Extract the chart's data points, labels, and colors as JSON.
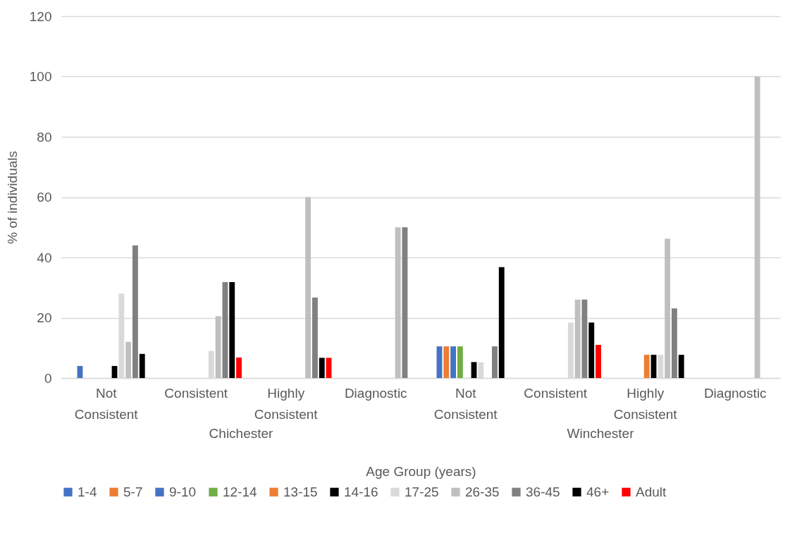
{
  "chart_data": {
    "type": "bar",
    "xlabel": "Age Group (years)",
    "ylabel": "% of individuals",
    "categories": [
      "Not Consistent",
      "Consistent",
      "Highly Consistent",
      "Diagnostic",
      "Not Consistent",
      "Consistent",
      "Highly Consistent",
      "Diagnostic"
    ],
    "annotations": [
      "Chichester",
      "Winchester"
    ],
    "series": [
      {
        "name": "1-4",
        "color": "#4472c4",
        "values": [
          4,
          null,
          null,
          null,
          10.5,
          null,
          null,
          null
        ]
      },
      {
        "name": "5-7",
        "color": "#ed7d31",
        "values": [
          null,
          null,
          null,
          null,
          10.5,
          null,
          null,
          null
        ]
      },
      {
        "name": "9-10",
        "color": "#4472c4",
        "values": [
          null,
          null,
          null,
          null,
          10.5,
          null,
          null,
          null
        ]
      },
      {
        "name": "12-14",
        "color": "#70ad47",
        "values": [
          null,
          null,
          null,
          null,
          10.5,
          null,
          null,
          null
        ]
      },
      {
        "name": "13-15",
        "color": "#ed7d31",
        "values": [
          null,
          null,
          null,
          null,
          null,
          null,
          7.7,
          null
        ]
      },
      {
        "name": "14-16",
        "color": "#000000",
        "values": [
          4,
          null,
          null,
          null,
          5.3,
          null,
          7.7,
          null
        ]
      },
      {
        "name": "17-25",
        "color": "#d9d9d9",
        "values": [
          28,
          9,
          null,
          null,
          5.2,
          18.4,
          7.7,
          null
        ]
      },
      {
        "name": "26-35",
        "color": "#bfbfbf",
        "values": [
          12,
          20.5,
          60,
          50,
          null,
          26,
          46.2,
          100
        ]
      },
      {
        "name": "36-45",
        "color": "#808080",
        "values": [
          44,
          31.8,
          26.7,
          50,
          10.5,
          26,
          23.1,
          null
        ]
      },
      {
        "name": "46+",
        "color": "#000000",
        "values": [
          8,
          31.8,
          6.7,
          null,
          36.8,
          18.4,
          7.7,
          null
        ]
      },
      {
        "name": "Adult",
        "color": "#ff0000",
        "values": [
          null,
          6.8,
          6.7,
          null,
          null,
          11,
          null,
          null
        ]
      }
    ],
    "ylim": [
      0,
      120
    ],
    "yticks": [
      0,
      20,
      40,
      60,
      80,
      100,
      120
    ],
    "grid": "y",
    "legend": "bottom"
  }
}
